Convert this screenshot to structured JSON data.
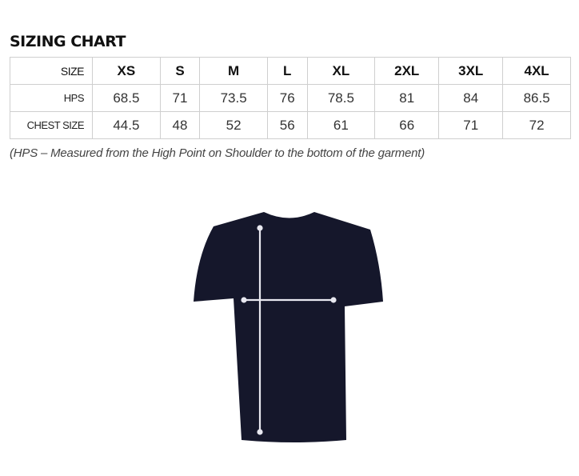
{
  "title": "SIZING CHART",
  "table": {
    "rows": [
      {
        "label": "SIZE",
        "values": [
          "XS",
          "S",
          "M",
          "L",
          "XL",
          "2XL",
          "3XL",
          "4XL"
        ]
      },
      {
        "label": "HPS",
        "values": [
          "68.5",
          "71",
          "73.5",
          "76",
          "78.5",
          "81",
          "84",
          "86.5"
        ]
      },
      {
        "label": "CHEST SIZE",
        "values": [
          "44.5",
          "48",
          "52",
          "56",
          "61",
          "66",
          "71",
          "72"
        ]
      }
    ]
  },
  "note": "(HPS – Measured from the High Point on Shoulder to the bottom of the garment)",
  "shirt_color": "#15172b"
}
